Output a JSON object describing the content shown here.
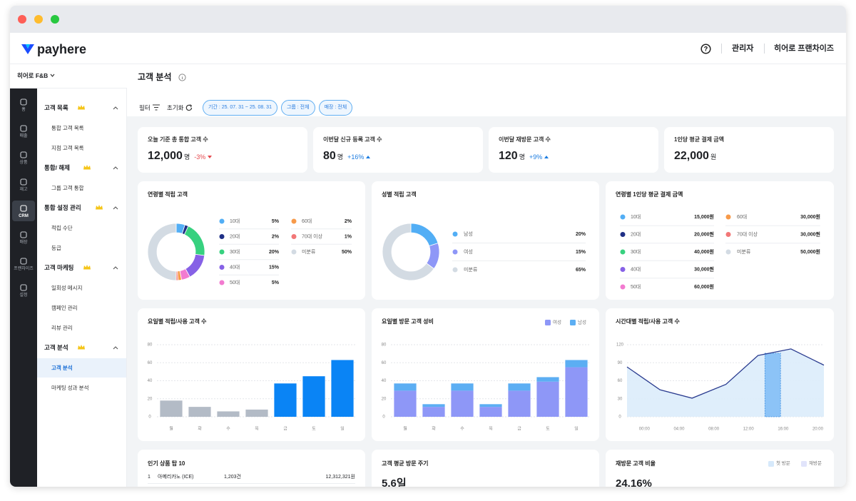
{
  "header": {
    "brand": "payhere",
    "user": "관리자",
    "org": "히어로 프랜차이즈"
  },
  "store": "히어로 F&B",
  "rail": [
    {
      "label": "홈"
    },
    {
      "label": "매출"
    },
    {
      "label": "상품"
    },
    {
      "label": "재고"
    },
    {
      "label": "CRM",
      "active": true
    },
    {
      "label": "매장"
    },
    {
      "label": "프랜차이즈"
    },
    {
      "label": "설정"
    }
  ],
  "menu": [
    {
      "title": "고객 목록",
      "items": [
        {
          "label": "통합 고객 목록"
        },
        {
          "label": "지점 고객 목록"
        }
      ]
    },
    {
      "title": "통합/ 해제",
      "items": [
        {
          "label": "그룹 고객 통합"
        }
      ]
    },
    {
      "title": "통합 설정 관리",
      "items": [
        {
          "label": "적립 수단"
        },
        {
          "label": "등급"
        }
      ]
    },
    {
      "title": "고객 마케팅",
      "items": [
        {
          "label": "일회성 메시지"
        },
        {
          "label": "캠페인 관리"
        },
        {
          "label": "리뷰 관리"
        }
      ]
    },
    {
      "title": "고객 분석",
      "items": [
        {
          "label": "고객 분석",
          "active": true
        },
        {
          "label": "마케팅 성과 분석"
        }
      ]
    }
  ],
  "page": {
    "title": "고객 분석",
    "filter": "필터",
    "reset": "초기화",
    "chips": [
      "기간 : 25. 07. 31 ~ 25. 08. 31",
      "그룹 : 전체",
      "매장 : 전체"
    ]
  },
  "kpis": [
    {
      "label": "오늘 기준 총 통합 고객 수",
      "value": "12,000",
      "unit": "명",
      "change": "-3%",
      "trend": "down"
    },
    {
      "label": "이번달 신규 등록 고객 수",
      "value": "80",
      "unit": "명",
      "change": "+16%",
      "trend": "up"
    },
    {
      "label": "이번달 재방문 고객 수",
      "value": "120",
      "unit": "명",
      "change": "+9%",
      "trend": "up"
    },
    {
      "label": "1인당 평균 결제 금액",
      "value": "22,000",
      "unit": "원"
    }
  ],
  "chart_data": [
    {
      "type": "donut",
      "title": "연령별 적립 고객",
      "categories": [
        "10대",
        "20대",
        "30대",
        "40대",
        "50대",
        "60대",
        "70대 이상",
        "미분류"
      ],
      "values": [
        5,
        2,
        20,
        15,
        5,
        2,
        1,
        50
      ],
      "value_labels": [
        "5%",
        "2%",
        "20%",
        "15%",
        "5%",
        "2%",
        "1%",
        "50%"
      ],
      "colors": [
        "#52aef5",
        "#1f2f86",
        "#37d17f",
        "#8661e6",
        "#f27bd0",
        "#f79a4a",
        "#f27777",
        "#d3dbe3"
      ]
    },
    {
      "type": "donut",
      "title": "성별 적립 고객",
      "categories": [
        "남성",
        "여성",
        "미분류"
      ],
      "values": [
        20,
        15,
        65
      ],
      "value_labels": [
        "20%",
        "15%",
        "65%"
      ],
      "colors": [
        "#52aef5",
        "#8e97f7",
        "#d3dbe3"
      ]
    },
    {
      "type": "bar",
      "title": "요일별 적립/사용 고객 수",
      "categories": [
        "월",
        "화",
        "수",
        "목",
        "금",
        "토",
        "일"
      ],
      "values": [
        18,
        11,
        6,
        8,
        37,
        45,
        63
      ],
      "colors": [
        "#b3bbc6",
        "#b3bbc6",
        "#b3bbc6",
        "#b3bbc6",
        "#0a84f5",
        "#0a84f5",
        "#0a84f5"
      ],
      "ylim": [
        0,
        80
      ],
      "yticks": [
        0,
        20,
        40,
        60,
        80
      ],
      "grid": true
    },
    {
      "type": "stacked_bar",
      "title": "요일별 방문 고객 성비",
      "categories": [
        "월",
        "화",
        "수",
        "목",
        "금",
        "토",
        "일"
      ],
      "series": [
        {
          "name": "여성",
          "color": "#8e97f7",
          "values": [
            29,
            11,
            29,
            11,
            29,
            39,
            55
          ]
        },
        {
          "name": "남성",
          "color": "#5caef3",
          "values": [
            8,
            3,
            8,
            3,
            8,
            5,
            8
          ]
        }
      ],
      "ylim": [
        0,
        80
      ],
      "yticks": [
        0,
        20,
        40,
        60,
        80
      ],
      "grid": true
    },
    {
      "type": "area",
      "title": "시간대별 적립/사용 고객 수",
      "x": [
        -2,
        1.8,
        5.5,
        9.4,
        13.1,
        16.9,
        20.7
      ],
      "values": [
        83,
        45,
        31,
        54,
        102,
        113,
        86
      ],
      "color": "#2a3b8f",
      "fill": "#dcecfb",
      "highlight": [
        13.9,
        15.7
      ],
      "highlight_color": "#8cc3f7",
      "xlim": [
        -2,
        20.7
      ],
      "xticks": [
        {
          "value": 0,
          "label": "00:00"
        },
        {
          "value": 4,
          "label": "04:00"
        },
        {
          "value": 8,
          "label": "08:00"
        },
        {
          "value": 12,
          "label": "12:00"
        },
        {
          "value": 16,
          "label": "16:00"
        },
        {
          "value": 20,
          "label": "20:00"
        }
      ],
      "ylim": [
        0,
        120
      ],
      "yticks": [
        0,
        30,
        60,
        90,
        120
      ],
      "grid": true
    }
  ],
  "age_spend": {
    "title": "연령별 1인당 평균 결제 금액",
    "rows": [
      {
        "label": "10대",
        "value": "15,000원",
        "color": "#52aef5"
      },
      {
        "label": "20대",
        "value": "20,000원",
        "color": "#1f2f86"
      },
      {
        "label": "30대",
        "value": "40,000원",
        "color": "#37d17f"
      },
      {
        "label": "40대",
        "value": "30,000원",
        "color": "#8661e6"
      },
      {
        "label": "50대",
        "value": "60,000원",
        "color": "#f27bd0"
      },
      {
        "label": "60대",
        "value": "30,000원",
        "color": "#f79a4a"
      },
      {
        "label": "70대 이상",
        "value": "30,000원",
        "color": "#f27777"
      },
      {
        "label": "미분류",
        "value": "50,000원",
        "color": "#d3dbe3"
      }
    ]
  },
  "top_products": {
    "title": "인기 상품 탑 10",
    "rows": [
      [
        "1",
        "아메리카노 (ICE)",
        "1,203건",
        "12,312,321원"
      ]
    ]
  },
  "visit_cycle": {
    "title": "고객 평균 방문 주기",
    "value": "5.6일"
  },
  "revisit": {
    "title": "재방문 고객 비율",
    "value": "24.16%",
    "legend": [
      {
        "name": "첫 방문",
        "color": "#d6e9fb"
      },
      {
        "name": "재방문",
        "color": "#e1e4fb"
      }
    ]
  }
}
